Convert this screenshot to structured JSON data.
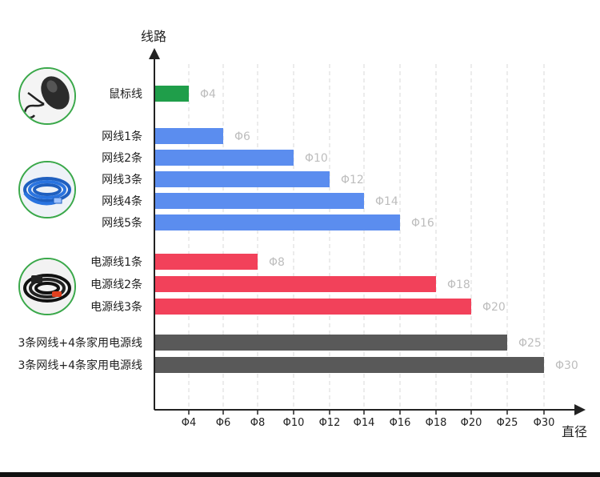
{
  "chart_data": {
    "type": "bar",
    "orientation": "horizontal",
    "ylabel": "线路",
    "xlabel": "直径",
    "x_tick_labels": [
      "Φ4",
      "Φ6",
      "Φ8",
      "Φ10",
      "Φ12",
      "Φ14",
      "Φ16",
      "Φ18",
      "Φ20",
      "Φ25",
      "Φ30"
    ],
    "grid": "vertical dashed",
    "groups": [
      {
        "color": "#1f9e4a",
        "thumbnail": "mouse-cable-icon",
        "bars": [
          {
            "label": "鼠标线",
            "value_label": "Φ4",
            "tick_index": 0
          }
        ]
      },
      {
        "color": "#5b8def",
        "thumbnail": "network-cable-icon",
        "bars": [
          {
            "label": "网线1条",
            "value_label": "Φ6",
            "tick_index": 1
          },
          {
            "label": "网线2条",
            "value_label": "Φ10",
            "tick_index": 3
          },
          {
            "label": "网线3条",
            "value_label": "Φ12",
            "tick_index": 4
          },
          {
            "label": "网线4条",
            "value_label": "Φ14",
            "tick_index": 5
          },
          {
            "label": "网线5条",
            "value_label": "Φ16",
            "tick_index": 6
          }
        ]
      },
      {
        "color": "#f2415a",
        "thumbnail": "power-cable-icon",
        "bars": [
          {
            "label": "电源线1条",
            "value_label": "Φ8",
            "tick_index": 2
          },
          {
            "label": "电源线2条",
            "value_label": "Φ18",
            "tick_index": 7
          },
          {
            "label": "电源线3条",
            "value_label": "Φ20",
            "tick_index": 8
          }
        ]
      },
      {
        "color": "#595959",
        "thumbnail": "",
        "bars": [
          {
            "label": "3条网线+4条家用电源线",
            "value_label": "Φ25",
            "tick_index": 9
          },
          {
            "label": "3条网线+4条家用电源线",
            "value_label": "Φ30",
            "tick_index": 10
          }
        ]
      }
    ]
  }
}
